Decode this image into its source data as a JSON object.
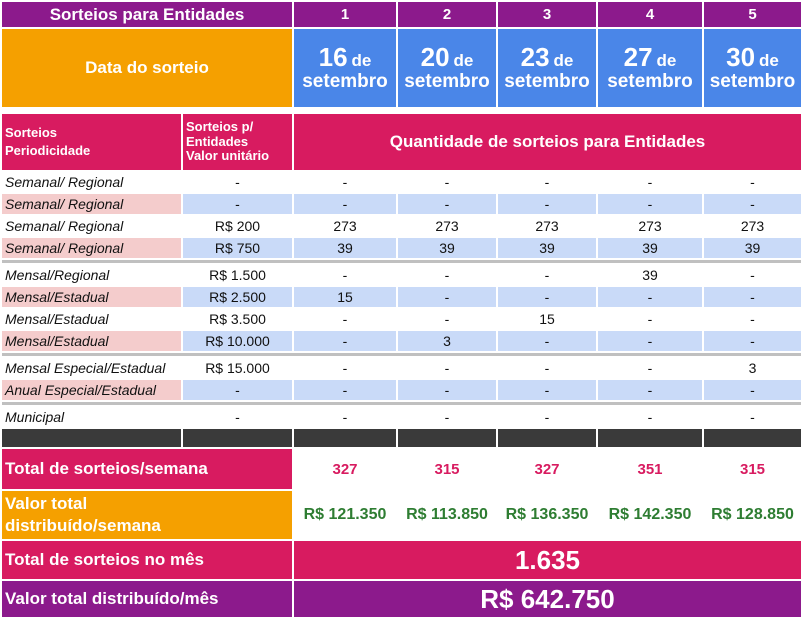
{
  "header": {
    "title": "Sorteios para Entidades",
    "columns": [
      "1",
      "2",
      "3",
      "4",
      "5"
    ]
  },
  "date_row": {
    "label": "Data do sorteio",
    "dates": [
      {
        "day": "16",
        "de": "de",
        "month": "setembro"
      },
      {
        "day": "20",
        "de": "de",
        "month": "setembro"
      },
      {
        "day": "23",
        "de": "de",
        "month": "setembro"
      },
      {
        "day": "27",
        "de": "de",
        "month": "setembro"
      },
      {
        "day": "30",
        "de": "de",
        "month": "setembro"
      }
    ]
  },
  "subheader": {
    "col1_line1": "Sorteios",
    "col1_line2": "Periodicidade",
    "col2_line1": "Sorteios p/",
    "col2_line2": "Entidades",
    "col2_line3": "Valor unitário",
    "qty_title": "Quantidade de sorteios para Entidades"
  },
  "rows": [
    {
      "label": "Semanal/ Regional",
      "unit": "-",
      "v": [
        "-",
        "-",
        "-",
        "-",
        "-"
      ]
    },
    {
      "label": "Semanal/ Regional",
      "unit": "-",
      "v": [
        "-",
        "-",
        "-",
        "-",
        "-"
      ]
    },
    {
      "label": "Semanal/ Regional",
      "unit": "R$ 200",
      "v": [
        "273",
        "273",
        "273",
        "273",
        "273"
      ]
    },
    {
      "label": "Semanal/ Regional",
      "unit": "R$ 750",
      "v": [
        "39",
        "39",
        "39",
        "39",
        "39"
      ]
    },
    {
      "label": "Mensal/Regional",
      "unit": "R$ 1.500",
      "v": [
        "-",
        "-",
        "-",
        "39",
        "-"
      ]
    },
    {
      "label": "Mensal/Estadual",
      "unit": "R$ 2.500",
      "v": [
        "15",
        "-",
        "-",
        "-",
        "-"
      ]
    },
    {
      "label": "Mensal/Estadual",
      "unit": "R$ 3.500",
      "v": [
        "-",
        "-",
        "15",
        "-",
        "-"
      ]
    },
    {
      "label": "Mensal/Estadual",
      "unit": "R$ 10.000",
      "v": [
        "-",
        "3",
        "-",
        "-",
        "-"
      ]
    },
    {
      "label": "Mensal Especial/Estadual",
      "unit": "R$ 15.000",
      "v": [
        "-",
        "-",
        "-",
        "-",
        "3"
      ]
    },
    {
      "label": "Anual Especial/Estadual",
      "unit": "-",
      "v": [
        "-",
        "-",
        "-",
        "-",
        "-"
      ]
    },
    {
      "label": "Municipal",
      "unit": "-",
      "v": [
        "-",
        "-",
        "-",
        "-",
        "-"
      ]
    }
  ],
  "totals": {
    "week_count_label": "Total de sorteios/semana",
    "week_counts": [
      "327",
      "315",
      "327",
      "351",
      "315"
    ],
    "week_value_label_1": "Valor total",
    "week_value_label_2": "distribuído/semana",
    "week_values": [
      "R$ 121.350",
      "R$ 113.850",
      "R$ 136.350",
      "R$ 142.350",
      "R$ 128.850"
    ],
    "month_count_label": "Total de sorteios no mês",
    "month_count": "1.635",
    "month_value_label": "Valor total distribuído/mês",
    "month_value": "R$ 642.750"
  },
  "colors": {
    "purple": "#8c1a8c",
    "orange": "#f5a000",
    "blue": "#4a86e8",
    "pink": "#d81b60",
    "green": "#2e7d32",
    "light_pink": "#f4cccc",
    "light_blue": "#c9daf8"
  }
}
